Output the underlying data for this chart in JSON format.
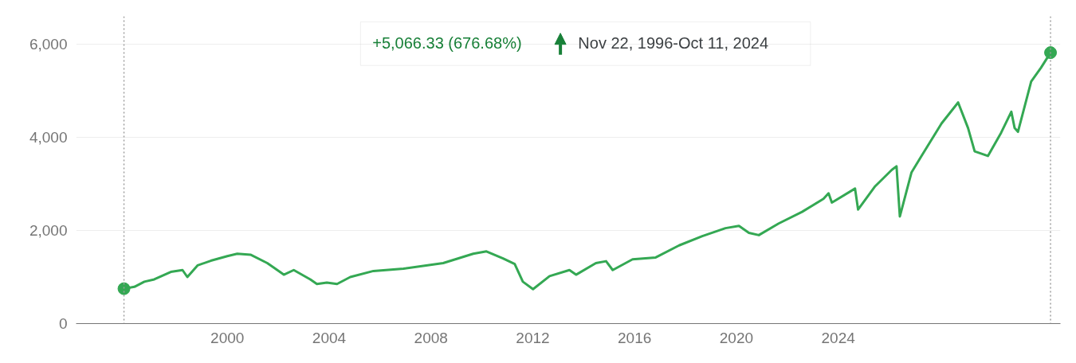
{
  "chart_data": {
    "type": "line",
    "x": [
      1995.94,
      1996.35,
      1996.74,
      1997.13,
      1997.78,
      1998.24,
      1998.43,
      1998.83,
      1999.35,
      2000.0,
      2000.39,
      2000.91,
      2001.57,
      2001.83,
      2002.22,
      2002.61,
      2003.26,
      2003.52,
      2003.91,
      2004.31,
      2004.83,
      2005.74,
      2006.92,
      2008.48,
      2009.66,
      2010.18,
      2010.83,
      2011.29,
      2011.61,
      2012.01,
      2012.66,
      2013.44,
      2013.7,
      2014.48,
      2014.88,
      2015.14,
      2015.92,
      2016.83,
      2017.75,
      2018.66,
      2019.57,
      2020.1,
      2020.49,
      2020.88,
      2021.66,
      2022.58,
      2023.42,
      2023.62,
      2023.75,
      2024.66,
      2024.78,
      2025.45,
      2026.1,
      2026.29,
      2026.42,
      2026.88,
      2027.27,
      2028.06,
      2028.71,
      2029.1,
      2029.36,
      2029.88,
      2030.4,
      2030.8,
      2030.93,
      2031.06,
      2031.58,
      2031.97,
      2032.34
    ],
    "series": [
      {
        "color": "#34a853",
        "values": [
          750,
          790,
          900,
          950,
          1110,
          1150,
          1000,
          1250,
          1350,
          1450,
          1500,
          1480,
          1300,
          1200,
          1050,
          1150,
          950,
          850,
          880,
          850,
          1000,
          1130,
          1180,
          1300,
          1500,
          1550,
          1400,
          1280,
          900,
          740,
          1020,
          1150,
          1050,
          1300,
          1340,
          1150,
          1380,
          1420,
          1680,
          1880,
          2050,
          2100,
          1950,
          1900,
          2150,
          2400,
          2680,
          2800,
          2600,
          2900,
          2450,
          2950,
          3300,
          3380,
          2300,
          3250,
          3600,
          4300,
          4750,
          4200,
          3700,
          3600,
          4100,
          4550,
          4200,
          4120,
          5200,
          5500,
          5820
        ]
      },
      {
        "type": "scatter",
        "color": "#34a853",
        "x": [
          1995.94,
          2032.34
        ],
        "values": [
          750,
          5820
        ],
        "marker": "circle"
      }
    ],
    "xlim": [
      1994.06,
      2032.73
    ],
    "xticks": [
      2000,
      2004,
      2008,
      2012,
      2016,
      2020,
      2024
    ],
    "ylim": [
      0,
      6600
    ],
    "yticks": [
      0,
      {
        "value": 2000,
        "label": "2,000"
      },
      {
        "value": 4000,
        "label": "4,000"
      },
      {
        "value": 6000,
        "label": "6,000"
      }
    ],
    "grid": "y",
    "ref_lines": [
      {
        "axis": "x",
        "value": 1995.94,
        "color": "#9e9e9e",
        "line_style": "dotted"
      },
      {
        "axis": "x",
        "value": 2032.34,
        "color": "#9e9e9e",
        "line_style": "dotted"
      }
    ],
    "annotations": [
      "+5,066.33 (676.68%)",
      "Nov 22, 1996-Oct 11, 2024"
    ]
  }
}
